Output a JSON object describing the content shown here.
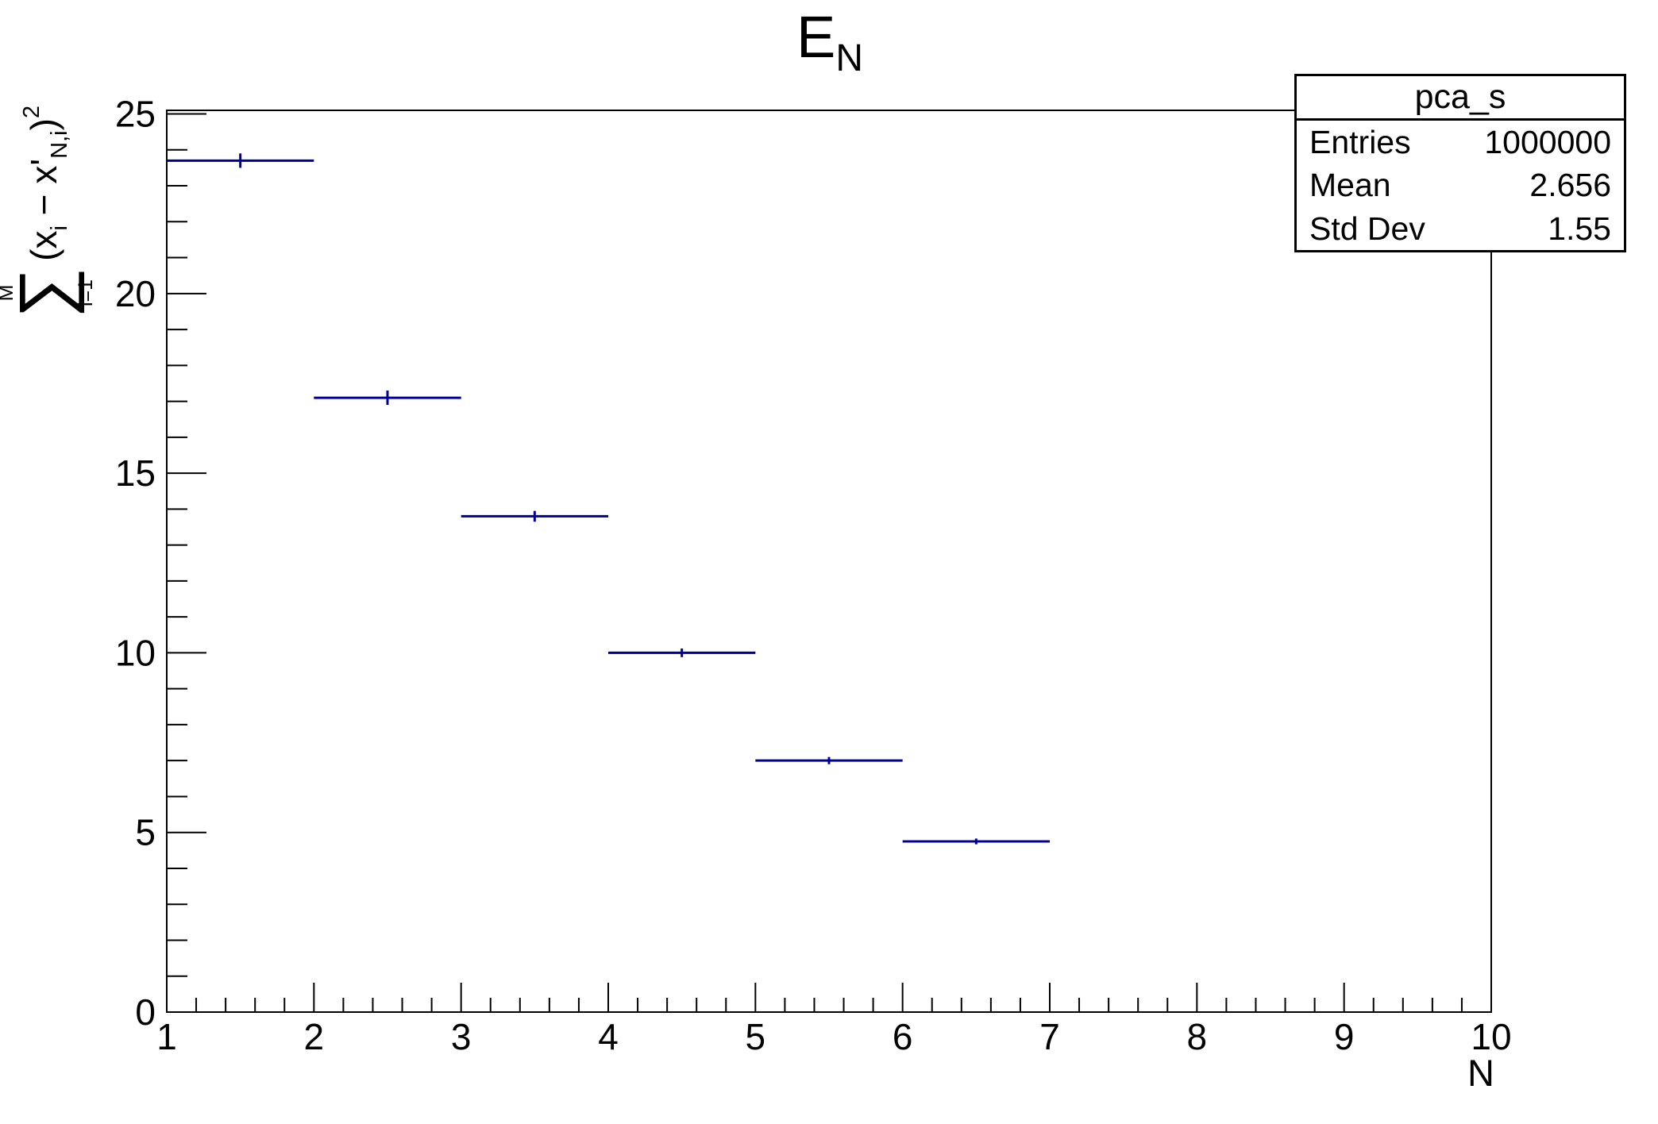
{
  "page": {
    "background": "#ffffff"
  },
  "title": {
    "main": "E",
    "subscript": "N"
  },
  "stats_box": {
    "title": "pca_s",
    "rows": [
      {
        "label": "Entries",
        "value": "1000000"
      },
      {
        "label": "Mean",
        "value": "2.656"
      },
      {
        "label": "Std Dev",
        "value": "1.55"
      }
    ]
  },
  "x_axis_title": "N",
  "y_axis_title": {
    "sum_upper": "M",
    "sum_symbol": "∑",
    "sum_lower": "i=1",
    "term_open": "(x",
    "sub_i": "i",
    "term_mid": " − x'",
    "sub_ni": "N,i",
    "term_close": ")",
    "exponent": "2"
  },
  "chart_data": {
    "type": "scatter",
    "style": "root-histogram-horizontal-bin-bars-with-error-ticks",
    "title": "E_N",
    "xlabel": "N",
    "ylabel": "sum_{i=1}^{M} (x_i - x'_{N,i})^2",
    "xlim": [
      1,
      10
    ],
    "ylim": [
      0,
      25.1
    ],
    "x_major_ticks": [
      1,
      2,
      3,
      4,
      5,
      6,
      7,
      8,
      9,
      10
    ],
    "x_minor_divisions": 5,
    "y_major_ticks": [
      0,
      5,
      10,
      15,
      20,
      25
    ],
    "y_minor_step": 1,
    "grid": false,
    "legend": false,
    "frame_color": "#000000",
    "marker_color": "#000099",
    "points": [
      {
        "x_low": 1,
        "x_high": 2,
        "x": 1.5,
        "y": 23.7,
        "y_err": 0.2
      },
      {
        "x_low": 2,
        "x_high": 3,
        "x": 2.5,
        "y": 17.1,
        "y_err": 0.2
      },
      {
        "x_low": 3,
        "x_high": 4,
        "x": 3.5,
        "y": 13.8,
        "y_err": 0.15
      },
      {
        "x_low": 4,
        "x_high": 5,
        "x": 4.5,
        "y": 10.0,
        "y_err": 0.12
      },
      {
        "x_low": 5,
        "x_high": 6,
        "x": 5.5,
        "y": 7.0,
        "y_err": 0.1
      },
      {
        "x_low": 6,
        "x_high": 7,
        "x": 6.5,
        "y": 4.75,
        "y_err": 0.08
      }
    ]
  }
}
